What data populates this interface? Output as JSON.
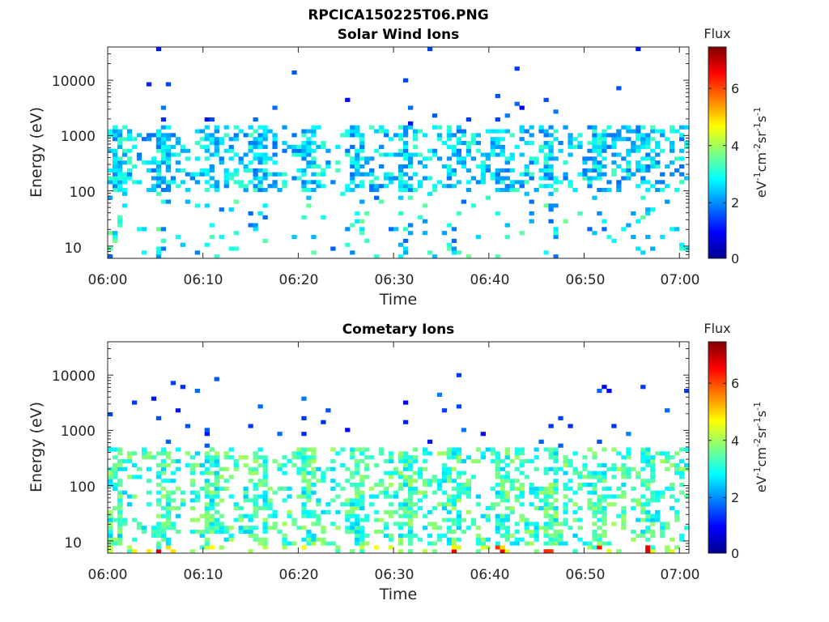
{
  "figure_title": "RPCICA150225T06.PNG",
  "colormap": {
    "name": "jet",
    "stops": [
      "#00008f",
      "#0000ff",
      "#0080ff",
      "#00ffff",
      "#80ff80",
      "#ffff00",
      "#ff8000",
      "#ff0000",
      "#800000"
    ]
  },
  "colorbar": {
    "label": "Flux",
    "range": [
      0,
      7.4
    ],
    "ticks": [
      "0",
      "2",
      "4",
      "6"
    ]
  },
  "chart_data": [
    {
      "type": "heatmap",
      "title": "Solar Wind Ions",
      "xlabel": "Time",
      "ylabel": "Energy (eV)",
      "yscale": "log",
      "ylim": [
        6,
        40000
      ],
      "xlim": [
        "06:00",
        "07:01"
      ],
      "xticks": [
        "06:00",
        "06:10",
        "06:20",
        "06:30",
        "06:40",
        "06:50",
        "07:00"
      ],
      "yticks": [
        "10",
        "100",
        "1000",
        "10000"
      ],
      "colorbar_label": "Flux",
      "colorbar_units": "eV-1cm-2sr-1s-1",
      "value_range": [
        0,
        7.4
      ],
      "dominant_energy_band_eV": [
        100,
        1500
      ],
      "typical_value": 2.5,
      "max_value_estimate": 4.3
    },
    {
      "type": "heatmap",
      "title": "Cometary Ions",
      "xlabel": "Time",
      "ylabel": "Energy (eV)",
      "yscale": "log",
      "ylim": [
        6,
        40000
      ],
      "xlim": [
        "06:00",
        "07:01"
      ],
      "xticks": [
        "06:00",
        "06:10",
        "06:20",
        "06:30",
        "06:40",
        "06:50",
        "07:00"
      ],
      "yticks": [
        "10",
        "100",
        "1000",
        "10000"
      ],
      "colorbar_label": "Flux",
      "colorbar_units": "eV-1cm-2sr-1s-1",
      "value_range": [
        0,
        7.4
      ],
      "dominant_energy_band_eV": [
        8,
        500
      ],
      "typical_value": 3.2,
      "max_value_estimate": 6.8
    }
  ]
}
